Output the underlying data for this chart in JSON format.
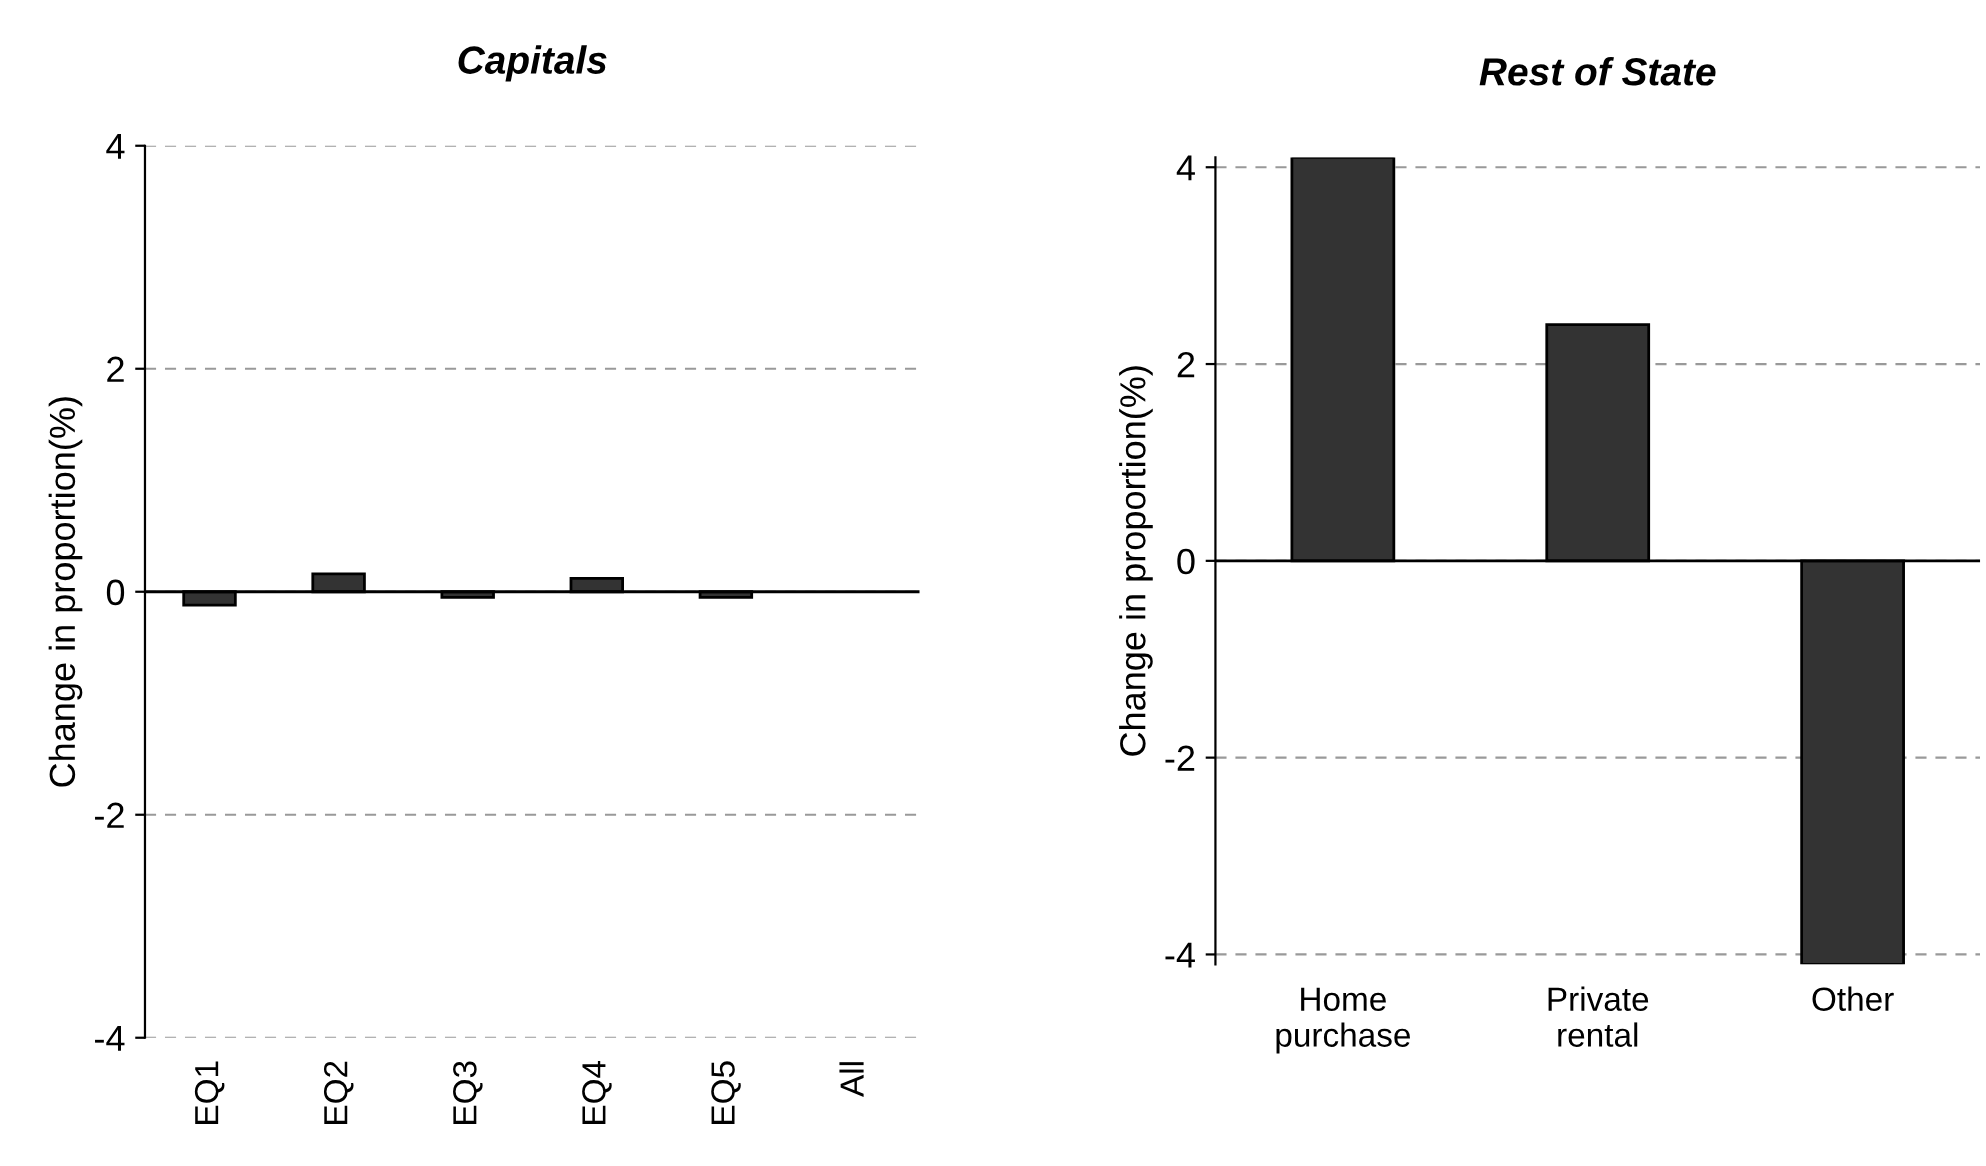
{
  "chart_data": [
    {
      "type": "bar",
      "title": "Capitals",
      "ylabel": "Change in proportion(%)",
      "categories": [
        "EQ1",
        "EQ2",
        "EQ3",
        "EQ4",
        "EQ5",
        "All"
      ],
      "values": [
        -0.12,
        0.16,
        -0.05,
        0.12,
        -0.05,
        null
      ],
      "color": "#333333",
      "ylim": [
        -4,
        4
      ],
      "yticks": [
        -4,
        -2,
        0,
        2,
        4
      ],
      "grid": "y"
    },
    {
      "type": "bar",
      "title": "Rest of State",
      "ylabel": "Change in proportion(%)",
      "categories": [
        "Home purchase",
        "Private rental",
        "Other"
      ],
      "values": [
        4.1,
        2.4,
        -4.1
      ],
      "color": "#333333",
      "ylim": [
        -4.1,
        4.1
      ],
      "yticks": [
        -4,
        -2,
        0,
        2,
        4
      ],
      "grid": "y"
    }
  ]
}
